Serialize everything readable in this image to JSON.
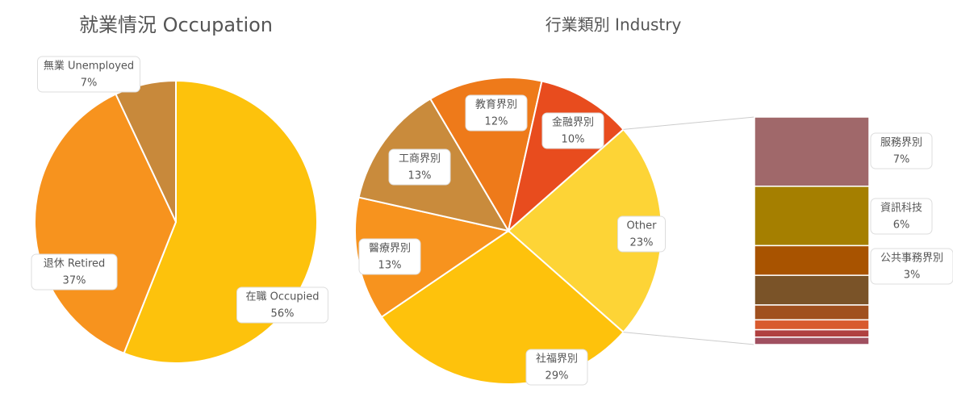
{
  "chart_data": [
    {
      "type": "pie",
      "title": "就業情況 Occupation",
      "categories": [
        "在職 Occupied",
        "退休 Retired",
        "無業 Unemployed"
      ],
      "values": [
        56,
        37,
        7
      ],
      "value_labels": [
        "56%",
        "37%",
        "7%"
      ],
      "colors": [
        "#FDC20C",
        "#F7931E",
        "#C8893B"
      ]
    },
    {
      "type": "pie",
      "title": "行業類別 Industry",
      "categories": [
        "Other",
        "社福界別",
        "醫療界別",
        "工商界別",
        "教育界別",
        "金融界別"
      ],
      "values": [
        23,
        29,
        13,
        13,
        12,
        10
      ],
      "value_labels": [
        "23%",
        "29%",
        "13%",
        "13%",
        "12%",
        "10%"
      ],
      "colors": [
        "#FDD436",
        "#FEC20C",
        "#F7931E",
        "#C98B3C",
        "#EE7A1A",
        "#E84C1E"
      ],
      "other_breakdown": {
        "categories": [
          "服務界別",
          "資訊科技",
          "公共事務界別",
          null,
          null,
          null,
          null,
          null
        ],
        "values": [
          7,
          6,
          3,
          3,
          1.5,
          1,
          0.75,
          0.75
        ],
        "value_labels": [
          "7%",
          "6%",
          "3%",
          null,
          null,
          null,
          null,
          null
        ],
        "colors": [
          "#A0686A",
          "#A57F00",
          "#A85300",
          "#7A5328",
          "#A0501E",
          "#D85A2E",
          "#B04040",
          "#A05060"
        ]
      }
    }
  ]
}
